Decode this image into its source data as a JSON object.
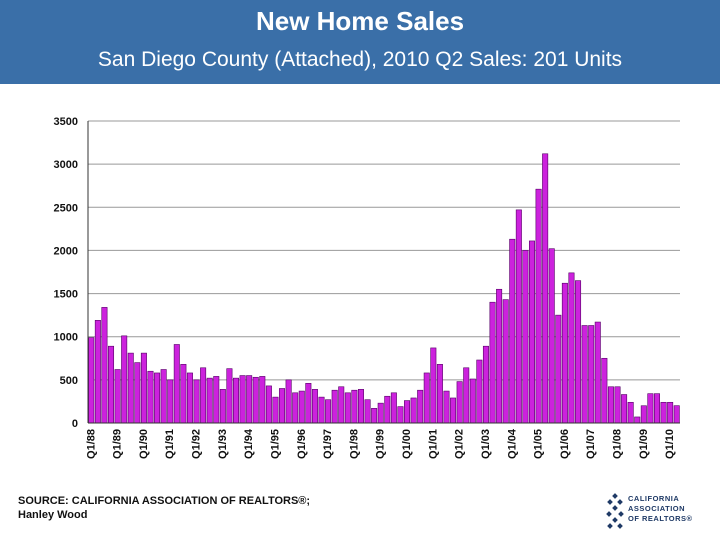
{
  "header": {
    "title": "New Home Sales",
    "subtitle": "San Diego County (Attached), 2010 Q2 Sales: 201 Units"
  },
  "footer": {
    "source_line1": "SOURCE: CALIFORNIA ASSOCIATION OF REALTORS®;",
    "source_line2": "Hanley Wood"
  },
  "logo": {
    "line1": "CALIFORNIA",
    "line2": "ASSOCIATION",
    "line3": "OF REALTORS®",
    "icon": "house-diamond-logo-icon"
  },
  "colors": {
    "header_bg": "#3a6fa8",
    "bar_fill": "#cc22dd",
    "bar_stroke": "#550066",
    "grid": "#999999"
  },
  "chart_data": {
    "type": "bar",
    "title": "",
    "xlabel": "",
    "ylabel": "",
    "ylim": [
      0,
      3500
    ],
    "yticks": [
      0,
      500,
      1000,
      1500,
      2000,
      2500,
      3000,
      3500
    ],
    "grid": true,
    "start_quarter": "Q1/88",
    "x_tick_labels": [
      "Q1/88",
      "Q1/89",
      "Q1/90",
      "Q1/91",
      "Q1/92",
      "Q1/93",
      "Q1/94",
      "Q1/95",
      "Q1/96",
      "Q1/97",
      "Q1/98",
      "Q1/99",
      "Q1/00",
      "Q1/01",
      "Q1/02",
      "Q1/03",
      "Q1/04",
      "Q1/05",
      "Q1/06",
      "Q1/07",
      "Q1/08",
      "Q1/09",
      "Q1/10"
    ],
    "values": [
      990,
      1190,
      1340,
      890,
      620,
      1010,
      810,
      700,
      810,
      600,
      580,
      620,
      500,
      910,
      680,
      580,
      500,
      640,
      520,
      540,
      390,
      630,
      520,
      550,
      550,
      530,
      540,
      430,
      300,
      400,
      500,
      350,
      370,
      460,
      390,
      300,
      270,
      380,
      420,
      350,
      380,
      390,
      270,
      170,
      230,
      310,
      350,
      190,
      260,
      290,
      380,
      580,
      870,
      680,
      370,
      290,
      480,
      640,
      510,
      730,
      890,
      1400,
      1550,
      1430,
      2130,
      2470,
      2000,
      2110,
      2710,
      3120,
      2020,
      1250,
      1620,
      1740,
      1650,
      1130,
      1130,
      1170,
      750,
      420,
      420,
      330,
      240,
      70,
      200,
      340,
      340,
      240,
      240,
      201
    ]
  }
}
